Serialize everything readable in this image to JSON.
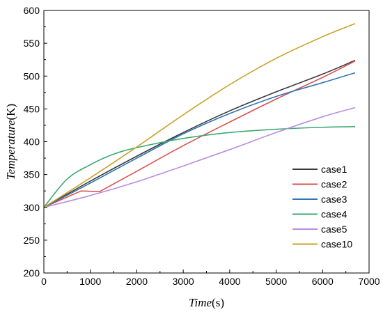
{
  "chart_data": {
    "type": "line",
    "title": "",
    "xlabel": {
      "italic": "Time",
      "unit": "(s)"
    },
    "ylabel": {
      "italic": "Temperature",
      "unit": "(K)"
    },
    "xlim": [
      0,
      7000
    ],
    "ylim": [
      200,
      600
    ],
    "xticks": [
      0,
      1000,
      2000,
      3000,
      4000,
      5000,
      6000,
      7000
    ],
    "yticks": [
      200,
      250,
      300,
      350,
      400,
      450,
      500,
      550,
      600
    ],
    "grid": false,
    "legend_position": "lower-right",
    "series": [
      {
        "name": "case1",
        "color": "#3a3a3a",
        "x": [
          0,
          1000,
          2000,
          3000,
          4000,
          5000,
          6000,
          6700
        ],
        "y": [
          300,
          340,
          378,
          414,
          447,
          476,
          503,
          524
        ]
      },
      {
        "name": "case2",
        "color": "#d9534f",
        "x": [
          0,
          800,
          1200,
          2000,
          3000,
          4000,
          5000,
          6000,
          6700
        ],
        "y": [
          300,
          325,
          324,
          355,
          394,
          430,
          465,
          498,
          523
        ]
      },
      {
        "name": "case3",
        "color": "#2e75b6",
        "x": [
          0,
          1000,
          2000,
          3000,
          4000,
          5000,
          6000,
          6700
        ],
        "y": [
          300,
          337,
          375,
          412,
          443,
          469,
          490,
          505
        ]
      },
      {
        "name": "case4",
        "color": "#3aaa72",
        "x": [
          0,
          500,
          1000,
          1500,
          2000,
          3000,
          4000,
          5000,
          6000,
          6700
        ],
        "y": [
          300,
          343,
          365,
          381,
          391,
          405,
          414,
          419,
          422,
          423
        ]
      },
      {
        "name": "case5",
        "color": "#b98de0",
        "x": [
          0,
          1000,
          2000,
          3000,
          4000,
          5000,
          6000,
          6700
        ],
        "y": [
          300,
          318,
          339,
          363,
          388,
          414,
          438,
          452
        ]
      },
      {
        "name": "case10",
        "color": "#c9a227",
        "x": [
          0,
          1000,
          2000,
          3000,
          4000,
          5000,
          6000,
          6700
        ],
        "y": [
          300,
          345,
          392,
          441,
          487,
          527,
          560,
          580
        ]
      }
    ]
  }
}
